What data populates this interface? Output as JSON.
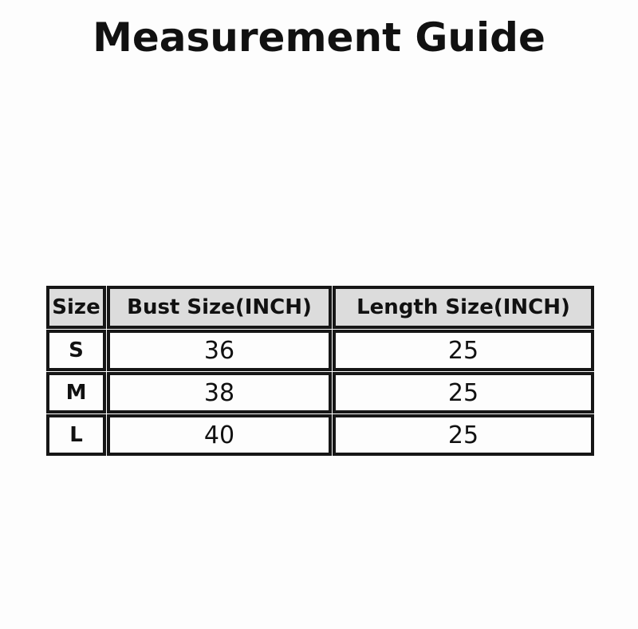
{
  "page": {
    "title": "Measurement Guide"
  },
  "colors": {
    "page_bg": "#fdfdfd",
    "header_bg": "#dcdcdc",
    "cell_bg": "#fdfdfd",
    "border": "#161616",
    "text": "#111111"
  },
  "size_chart": {
    "columns": [
      "Size",
      "Bust Size(INCH)",
      "Length Size(INCH)"
    ],
    "rows": [
      {
        "size": "S",
        "bust": "36",
        "length": "25"
      },
      {
        "size": "M",
        "bust": "38",
        "length": "25"
      },
      {
        "size": "L",
        "bust": "40",
        "length": "25"
      }
    ]
  },
  "chart_data": {
    "type": "table",
    "title": "Measurement Guide",
    "columns": [
      "Size",
      "Bust Size(INCH)",
      "Length Size(INCH)"
    ],
    "rows": [
      [
        "S",
        "36",
        "25"
      ],
      [
        "M",
        "38",
        "25"
      ],
      [
        "L",
        "40",
        "25"
      ]
    ]
  }
}
